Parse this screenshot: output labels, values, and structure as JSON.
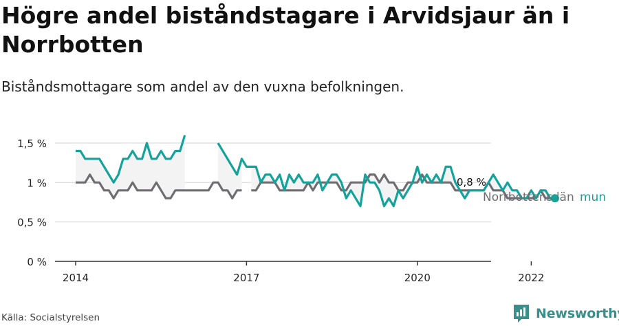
{
  "header": {
    "title": "Högre andel biståndstagare i Arvidsjaur än i Norrbotten",
    "subtitle": "Biståndsmottagare som andel av den vuxna befolkningen."
  },
  "footer": {
    "source": "Källa: Socialstyrelsen",
    "brand": "Newsworthy",
    "brand_icon": "newsworthy-logo-icon"
  },
  "colors": {
    "kommun": "#14a39a",
    "lan": "#6f6d72",
    "gridline": "#dddddd",
    "fill": "#f3f3f4"
  },
  "chart_data": {
    "type": "line",
    "title": "Högre andel biståndstagare i Arvidsjaur än i Norrbotten",
    "subtitle": "Biståndsmottagare som andel av den vuxna befolkningen.",
    "xlabel": "",
    "ylabel": "",
    "x_ticks": [
      "2014",
      "2017",
      "2020",
      "2022"
    ],
    "y_ticks": [
      "0 %",
      "0,5 %",
      "1 %",
      "1,5 %"
    ],
    "ylim": [
      0,
      1.5
    ],
    "grid": true,
    "end_label": "0,8 %",
    "series": [
      {
        "name": "mun",
        "color": "#14a39a",
        "points": [
          [
            "2014-01",
            1.4
          ],
          [
            "2014-02",
            1.4
          ],
          [
            "2014-03",
            1.3
          ],
          [
            "2014-04",
            1.3
          ],
          [
            "2014-05",
            1.3
          ],
          [
            "2014-06",
            1.3
          ],
          [
            "2014-07",
            1.2
          ],
          [
            "2014-08",
            1.1
          ],
          [
            "2014-09",
            1.0
          ],
          [
            "2014-10",
            1.1
          ],
          [
            "2014-11",
            1.3
          ],
          [
            "2014-12",
            1.3
          ],
          [
            "2015-01",
            1.4
          ],
          [
            "2015-02",
            1.3
          ],
          [
            "2015-03",
            1.3
          ],
          [
            "2015-04",
            1.5
          ],
          [
            "2015-05",
            1.3
          ],
          [
            "2015-06",
            1.3
          ],
          [
            "2015-07",
            1.4
          ],
          [
            "2015-08",
            1.3
          ],
          [
            "2015-09",
            1.3
          ],
          [
            "2015-10",
            1.4
          ],
          [
            "2015-11",
            1.4
          ],
          [
            "2015-12",
            1.6
          ],
          [
            "2016-01",
            null
          ],
          [
            "2016-02",
            null
          ],
          [
            "2016-03",
            null
          ],
          [
            "2016-04",
            null
          ],
          [
            "2016-05",
            null
          ],
          [
            "2016-06",
            null
          ],
          [
            "2016-07",
            1.5
          ],
          [
            "2016-08",
            1.4
          ],
          [
            "2016-09",
            1.3
          ],
          [
            "2016-10",
            1.2
          ],
          [
            "2016-11",
            1.1
          ],
          [
            "2016-12",
            1.3
          ],
          [
            "2017-01",
            1.2
          ],
          [
            "2017-02",
            1.2
          ],
          [
            "2017-03",
            1.2
          ],
          [
            "2017-04",
            1.0
          ],
          [
            "2017-05",
            1.1
          ],
          [
            "2017-06",
            1.1
          ],
          [
            "2017-07",
            1.0
          ],
          [
            "2017-08",
            1.1
          ],
          [
            "2017-09",
            0.9
          ],
          [
            "2017-10",
            1.1
          ],
          [
            "2017-11",
            1.0
          ],
          [
            "2017-12",
            1.1
          ],
          [
            "2018-01",
            1.0
          ],
          [
            "2018-02",
            1.0
          ],
          [
            "2018-03",
            1.0
          ],
          [
            "2018-04",
            1.1
          ],
          [
            "2018-05",
            0.9
          ],
          [
            "2018-06",
            1.0
          ],
          [
            "2018-07",
            1.1
          ],
          [
            "2018-08",
            1.1
          ],
          [
            "2018-09",
            1.0
          ],
          [
            "2018-10",
            0.8
          ],
          [
            "2018-11",
            0.9
          ],
          [
            "2018-12",
            0.8
          ],
          [
            "2019-01",
            0.7
          ],
          [
            "2019-02",
            1.1
          ],
          [
            "2019-03",
            1.0
          ],
          [
            "2019-04",
            1.0
          ],
          [
            "2019-05",
            0.9
          ],
          [
            "2019-06",
            0.7
          ],
          [
            "2019-07",
            0.8
          ],
          [
            "2019-08",
            0.7
          ],
          [
            "2019-09",
            0.9
          ],
          [
            "2019-10",
            0.8
          ],
          [
            "2019-11",
            0.9
          ],
          [
            "2019-12",
            1.0
          ],
          [
            "2020-01",
            1.2
          ],
          [
            "2020-02",
            1.0
          ],
          [
            "2020-03",
            1.1
          ],
          [
            "2020-04",
            1.0
          ],
          [
            "2020-05",
            1.1
          ],
          [
            "2020-06",
            1.0
          ],
          [
            "2020-07",
            1.2
          ],
          [
            "2020-08",
            1.2
          ],
          [
            "2020-09",
            1.0
          ],
          [
            "2020-10",
            0.9
          ],
          [
            "2020-11",
            0.8
          ],
          [
            "2020-12",
            0.9
          ],
          [
            "2021-01",
            0.9
          ],
          [
            "2021-02",
            0.9
          ],
          [
            "2021-03",
            0.9
          ],
          [
            "2021-04",
            1.0
          ],
          [
            "2021-05",
            1.1
          ],
          [
            "2021-06",
            1.0
          ],
          [
            "2021-07",
            0.9
          ],
          [
            "2021-08",
            1.0
          ],
          [
            "2021-09",
            0.9
          ],
          [
            "2021-10",
            0.9
          ],
          [
            "2021-11",
            0.8
          ],
          [
            "2021-12",
            0.8
          ],
          [
            "2022-01",
            0.9
          ],
          [
            "2022-02",
            0.8
          ],
          [
            "2022-03",
            0.9
          ],
          [
            "2022-04",
            0.9
          ],
          [
            "2022-05",
            0.8
          ],
          [
            "2022-06",
            0.8
          ]
        ]
      },
      {
        "name": "Norrbottens län",
        "color": "#6f6d72",
        "points": [
          [
            "2014-01",
            1.0
          ],
          [
            "2014-02",
            1.0
          ],
          [
            "2014-03",
            1.0
          ],
          [
            "2014-04",
            1.1
          ],
          [
            "2014-05",
            1.0
          ],
          [
            "2014-06",
            1.0
          ],
          [
            "2014-07",
            0.9
          ],
          [
            "2014-08",
            0.9
          ],
          [
            "2014-09",
            0.8
          ],
          [
            "2014-10",
            0.9
          ],
          [
            "2014-11",
            0.9
          ],
          [
            "2014-12",
            0.9
          ],
          [
            "2015-01",
            1.0
          ],
          [
            "2015-02",
            0.9
          ],
          [
            "2015-03",
            0.9
          ],
          [
            "2015-04",
            0.9
          ],
          [
            "2015-05",
            0.9
          ],
          [
            "2015-06",
            1.0
          ],
          [
            "2015-07",
            0.9
          ],
          [
            "2015-08",
            0.8
          ],
          [
            "2015-09",
            0.8
          ],
          [
            "2015-10",
            0.9
          ],
          [
            "2015-11",
            0.9
          ],
          [
            "2015-12",
            0.9
          ],
          [
            "2016-01",
            0.9
          ],
          [
            "2016-02",
            0.9
          ],
          [
            "2016-03",
            0.9
          ],
          [
            "2016-04",
            0.9
          ],
          [
            "2016-05",
            0.9
          ],
          [
            "2016-06",
            1.0
          ],
          [
            "2016-07",
            1.0
          ],
          [
            "2016-08",
            0.9
          ],
          [
            "2016-09",
            0.9
          ],
          [
            "2016-10",
            0.8
          ],
          [
            "2016-11",
            0.9
          ],
          [
            "2016-12",
            0.9
          ],
          [
            "2017-01",
            null
          ],
          [
            "2017-02",
            0.9
          ],
          [
            "2017-03",
            0.9
          ],
          [
            "2017-04",
            1.0
          ],
          [
            "2017-05",
            1.0
          ],
          [
            "2017-06",
            1.0
          ],
          [
            "2017-07",
            1.0
          ],
          [
            "2017-08",
            0.9
          ],
          [
            "2017-09",
            0.9
          ],
          [
            "2017-10",
            0.9
          ],
          [
            "2017-11",
            0.9
          ],
          [
            "2017-12",
            0.9
          ],
          [
            "2018-01",
            0.9
          ],
          [
            "2018-02",
            1.0
          ],
          [
            "2018-03",
            0.9
          ],
          [
            "2018-04",
            1.0
          ],
          [
            "2018-05",
            1.0
          ],
          [
            "2018-06",
            1.0
          ],
          [
            "2018-07",
            1.0
          ],
          [
            "2018-08",
            1.0
          ],
          [
            "2018-09",
            0.9
          ],
          [
            "2018-10",
            0.9
          ],
          [
            "2018-11",
            1.0
          ],
          [
            "2018-12",
            1.0
          ],
          [
            "2019-01",
            1.0
          ],
          [
            "2019-02",
            1.0
          ],
          [
            "2019-03",
            1.1
          ],
          [
            "2019-04",
            1.1
          ],
          [
            "2019-05",
            1.0
          ],
          [
            "2019-06",
            1.1
          ],
          [
            "2019-07",
            1.0
          ],
          [
            "2019-08",
            1.0
          ],
          [
            "2019-09",
            0.9
          ],
          [
            "2019-10",
            0.9
          ],
          [
            "2019-11",
            1.0
          ],
          [
            "2019-12",
            1.0
          ],
          [
            "2020-01",
            1.0
          ],
          [
            "2020-02",
            1.1
          ],
          [
            "2020-03",
            1.0
          ],
          [
            "2020-04",
            1.0
          ],
          [
            "2020-05",
            1.0
          ],
          [
            "2020-06",
            1.0
          ],
          [
            "2020-07",
            1.0
          ],
          [
            "2020-08",
            1.0
          ],
          [
            "2020-09",
            0.9
          ],
          [
            "2020-10",
            0.9
          ],
          [
            "2020-11",
            0.9
          ],
          [
            "2020-12",
            0.9
          ],
          [
            "2021-01",
            0.9
          ],
          [
            "2021-02",
            0.9
          ],
          [
            "2021-03",
            0.9
          ],
          [
            "2021-04",
            1.0
          ],
          [
            "2021-05",
            0.9
          ],
          [
            "2021-06",
            0.9
          ],
          [
            "2021-07",
            0.9
          ],
          [
            "2021-08",
            0.8
          ],
          [
            "2021-09",
            0.8
          ],
          [
            "2021-10",
            0.8
          ],
          [
            "2021-11",
            0.8
          ],
          [
            "2021-12",
            0.8
          ],
          [
            "2022-01",
            0.8
          ],
          [
            "2022-02",
            0.8
          ],
          [
            "2022-03",
            0.9
          ],
          [
            "2022-04",
            0.8
          ],
          [
            "2022-05",
            0.8
          ],
          [
            "2022-06",
            0.8
          ]
        ]
      }
    ]
  }
}
